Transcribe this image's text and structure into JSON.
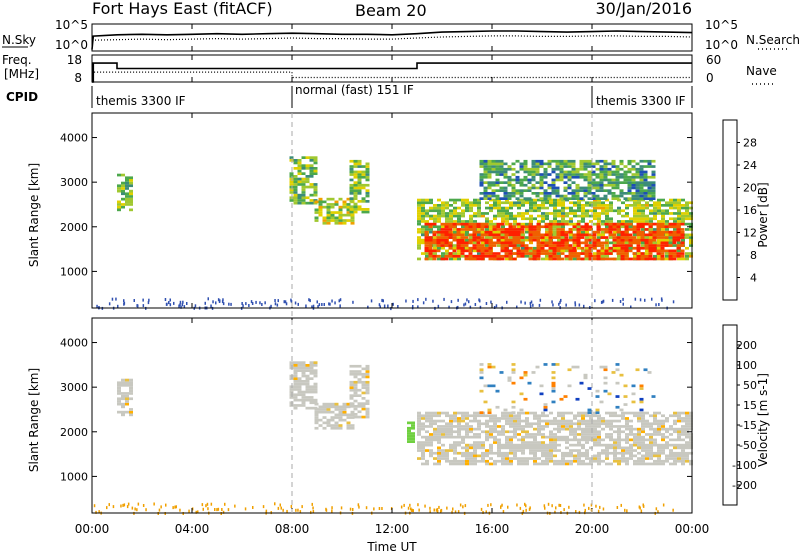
{
  "header": {
    "title": "Fort Hays East (fitACF)",
    "beam": "Beam 20",
    "date": "30/Jan/2016"
  },
  "colors": {
    "axis": "#000000",
    "dashed_marker": "#aaaaaa",
    "ground_scatter": "#c8c8c0"
  },
  "chart_data": [
    {
      "type": "line",
      "panel": "noise",
      "left_label": "N.Sky",
      "right_label": "N.Search",
      "left_ticks": [
        "10^5",
        "10^0"
      ],
      "right_ticks": [
        "10^5",
        "10^0"
      ],
      "series": [
        {
          "name": "N.Sky",
          "style": "solid",
          "x_hours": [
            0,
            0.05,
            1,
            2,
            3,
            4,
            5,
            6,
            7,
            8,
            9,
            10,
            11,
            12,
            13,
            14,
            15,
            16,
            17,
            18,
            19,
            20,
            21,
            22,
            23,
            24
          ],
          "level": [
            0.05,
            0.55,
            0.6,
            0.62,
            0.6,
            0.62,
            0.64,
            0.62,
            0.64,
            0.66,
            0.64,
            0.62,
            0.62,
            0.6,
            0.64,
            0.7,
            0.72,
            0.74,
            0.74,
            0.72,
            0.7,
            0.72,
            0.74,
            0.72,
            0.7,
            0.68
          ]
        },
        {
          "name": "N.Search",
          "style": "dotted",
          "x_hours": [
            0,
            1,
            2,
            3,
            4,
            5,
            6,
            7,
            8,
            9,
            10,
            11,
            12,
            13,
            14,
            15,
            16,
            17,
            18,
            19,
            20,
            21,
            22,
            23,
            24
          ],
          "level": [
            0.4,
            0.42,
            0.44,
            0.42,
            0.44,
            0.46,
            0.44,
            0.46,
            0.48,
            0.46,
            0.46,
            0.44,
            0.44,
            0.48,
            0.52,
            0.54,
            0.56,
            0.56,
            0.54,
            0.54,
            0.56,
            0.56,
            0.54,
            0.54,
            0.52
          ]
        }
      ]
    },
    {
      "type": "line",
      "panel": "frequency",
      "left_label_line1": "Freq.",
      "left_label_line2": "[MHz]",
      "right_label": "Nave",
      "left_ticks": [
        "18",
        "8"
      ],
      "right_ticks": [
        "60",
        "0"
      ],
      "series": [
        {
          "name": "Freq.",
          "style": "solid",
          "steps": [
            {
              "x": 0,
              "mhz": 8
            },
            {
              "x": 0.05,
              "mhz": 15
            },
            {
              "x": 1.0,
              "mhz": 13
            },
            {
              "x": 13.0,
              "mhz": 15
            },
            {
              "x": 24,
              "mhz": 15
            }
          ]
        },
        {
          "name": "Nave",
          "style": "dotted",
          "steps": [
            {
              "x": 0,
              "nave": 0
            },
            {
              "x": 0.05,
              "nave": 22
            },
            {
              "x": 8.0,
              "nave": 10
            },
            {
              "x": 24,
              "nave": 10
            }
          ]
        }
      ]
    },
    {
      "type": "table",
      "panel": "cpid",
      "label": "CPID",
      "segments": [
        {
          "start": 0,
          "end": 8,
          "text": "themis 3300 IF"
        },
        {
          "start": 8,
          "end": 20,
          "text": "normal (fast) 151 IF"
        },
        {
          "start": 20,
          "end": 24,
          "text": "themis 3300 IF"
        }
      ]
    },
    {
      "type": "heatmap",
      "panel": "power",
      "ylabel": "Slant Range [km]",
      "yticks": [
        1000,
        2000,
        3000,
        4000
      ],
      "ylim": [
        180,
        4550
      ],
      "xlim": [
        0,
        24
      ],
      "colorbar_label": "Power [dB]",
      "colorbar_ticks": [
        "28",
        "24",
        "20",
        "16",
        "12",
        "8",
        "4"
      ],
      "colorbar_colors": [
        "#0000ff",
        "#1e50b4",
        "#3c8c78",
        "#4ca84c",
        "#a0c830",
        "#e0d000",
        "#f0a000",
        "#f06000",
        "#ff2000"
      ],
      "patches": [
        {
          "t0": 1.0,
          "t1": 1.6,
          "r0": 2350,
          "r1": 3150,
          "level": 0.45
        },
        {
          "t0": 7.9,
          "t1": 9.0,
          "r0": 2500,
          "r1": 3550,
          "level": 0.45
        },
        {
          "t0": 8.9,
          "t1": 10.5,
          "r0": 2050,
          "r1": 2600,
          "level": 0.55
        },
        {
          "t0": 10.3,
          "t1": 11.0,
          "r0": 2300,
          "r1": 3500,
          "level": 0.45
        },
        {
          "t0": 13.0,
          "t1": 24.0,
          "r0": 1250,
          "r1": 2600,
          "level": 0.5
        },
        {
          "t0": 13.3,
          "t1": 23.6,
          "r0": 1250,
          "r1": 2050,
          "level": 0.92
        },
        {
          "t0": 15.5,
          "t1": 22.5,
          "r0": 2600,
          "r1": 3500,
          "level": 0.35
        }
      ]
    },
    {
      "type": "heatmap",
      "panel": "velocity",
      "ylabel": "Slant Range [km]",
      "yticks": [
        1000,
        2000,
        3000,
        4000
      ],
      "ylim": [
        180,
        4550
      ],
      "xlim": [
        0,
        24
      ],
      "xticks": [
        "00:00",
        "04:00",
        "08:00",
        "12:00",
        "16:00",
        "20:00",
        "00:00"
      ],
      "xlabel": "Time UT",
      "colorbar_label": "Velocity [m s-1]",
      "colorbar_ticks": [
        "200",
        "100",
        "50",
        "15",
        "-15",
        "-50",
        "-100",
        "-200"
      ],
      "colorbar_colors": [
        "#e00000",
        "#ff4000",
        "#ff8000",
        "#ffb000",
        "#e8c040",
        "#c8c8c0",
        "#70d040",
        "#409040",
        "#3080c0",
        "#1040c0"
      ],
      "patches": [
        {
          "t0": 1.0,
          "t1": 1.6,
          "r0": 2350,
          "r1": 3150,
          "kind": "ground"
        },
        {
          "t0": 7.9,
          "t1": 9.0,
          "r0": 2500,
          "r1": 3550,
          "kind": "ground"
        },
        {
          "t0": 8.9,
          "t1": 10.5,
          "r0": 2050,
          "r1": 2600,
          "kind": "ground"
        },
        {
          "t0": 10.3,
          "t1": 11.0,
          "r0": 2300,
          "r1": 3500,
          "kind": "ground"
        },
        {
          "t0": 13.0,
          "t1": 24.0,
          "r0": 1250,
          "r1": 2400,
          "kind": "ground"
        },
        {
          "t0": 15.5,
          "t1": 22.5,
          "r0": 2400,
          "r1": 3500,
          "kind": "sparse"
        },
        {
          "t0": 12.6,
          "t1": 12.9,
          "r0": 1750,
          "r1": 2200,
          "kind": "green"
        }
      ]
    }
  ]
}
